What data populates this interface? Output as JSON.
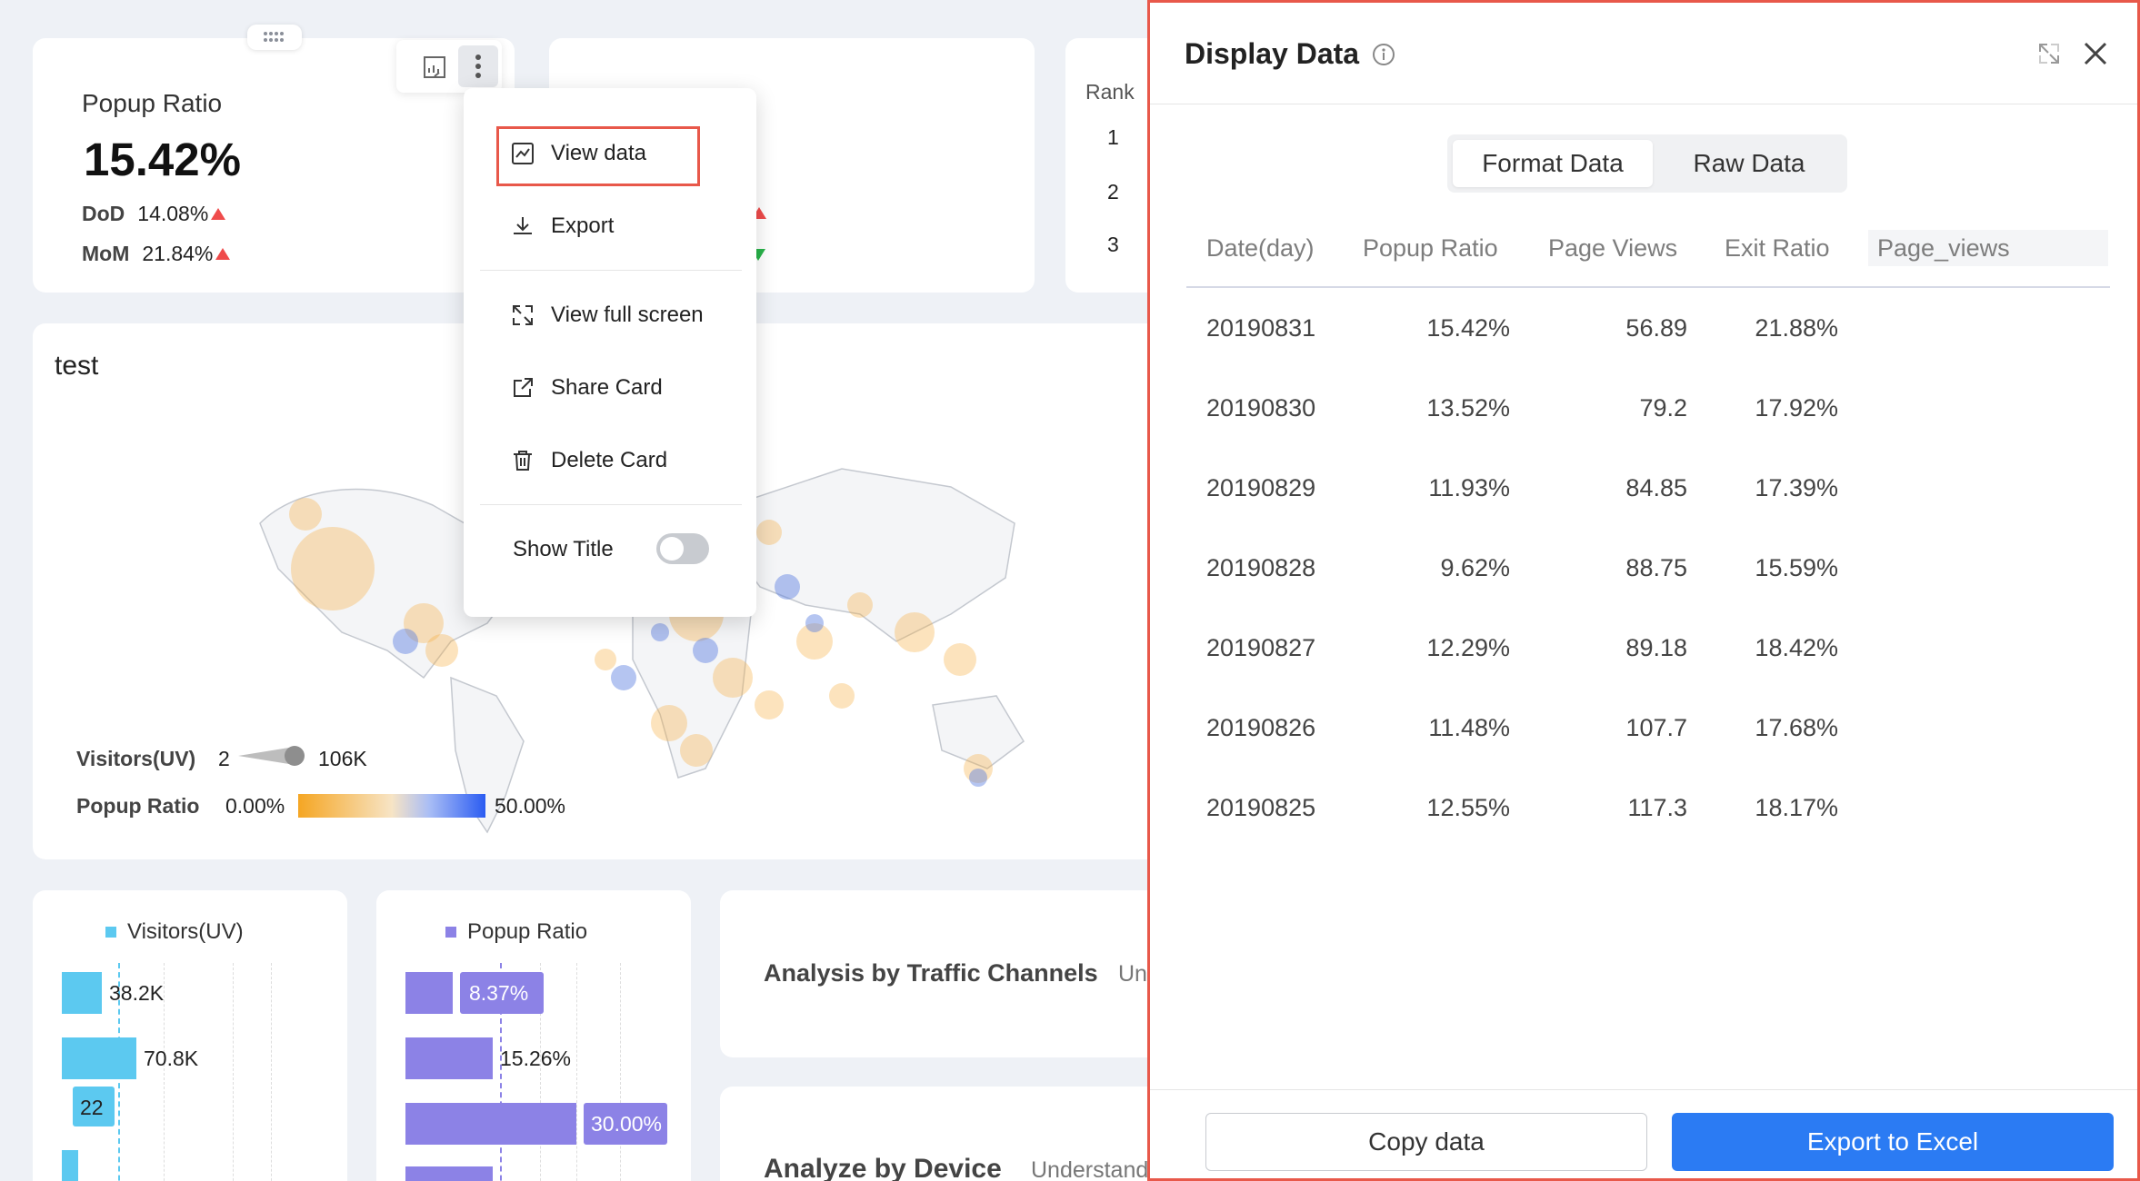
{
  "kpi": {
    "title": "Popup Ratio",
    "value": "15.42%",
    "dod_label": "DoD",
    "dod_value": "14.08%",
    "mom_label": "MoM",
    "mom_value": "21.84%"
  },
  "rank": {
    "header": "Rank",
    "rows": [
      "1",
      "2",
      "3"
    ]
  },
  "menu": {
    "view_data": "View data",
    "export": "Export",
    "view_full_screen": "View full screen",
    "share_card": "Share Card",
    "delete_card": "Delete Card",
    "show_title": "Show Title",
    "show_title_on": false
  },
  "map_card": {
    "title": "test",
    "legend_size_label": "Visitors(UV)",
    "legend_size_min": "2",
    "legend_size_max": "106K",
    "legend_color_label": "Popup Ratio",
    "legend_color_min": "0.00%",
    "legend_color_max": "50.00%"
  },
  "bar_card_1": {
    "legend": "Visitors(UV)",
    "color": "#5cc9f0",
    "labels": [
      "38.2K",
      "70.8K",
      "22"
    ]
  },
  "bar_card_2": {
    "legend": "Popup Ratio",
    "color": "#8c82e6",
    "labels": [
      "8.37%",
      "15.26%",
      "30.00%"
    ]
  },
  "analysis_cards": {
    "traffic_title": "Analysis by Traffic Channels",
    "traffic_sub": "Und",
    "device_title": "Analyze by Device",
    "device_sub": "Understand"
  },
  "panel": {
    "title": "Display Data",
    "tabs": [
      "Format Data",
      "Raw Data"
    ],
    "active_tab": "Format Data",
    "columns": [
      "Date(day)",
      "Popup Ratio",
      "Page Views",
      "Exit Ratio",
      "Page_views"
    ],
    "rows": [
      [
        "20190831",
        "15.42%",
        "56.89",
        "21.88%"
      ],
      [
        "20190830",
        "13.52%",
        "79.2",
        "17.92%"
      ],
      [
        "20190829",
        "11.93%",
        "84.85",
        "17.39%"
      ],
      [
        "20190828",
        "9.62%",
        "88.75",
        "15.59%"
      ],
      [
        "20190827",
        "12.29%",
        "89.18",
        "18.42%"
      ],
      [
        "20190826",
        "11.48%",
        "107.7",
        "17.68%"
      ],
      [
        "20190825",
        "12.55%",
        "117.3",
        "18.17%"
      ]
    ],
    "copy_button": "Copy data",
    "export_button": "Export to Excel"
  },
  "colors": {
    "accent": "#2b7bf3",
    "highlight_border": "#e8584a"
  }
}
